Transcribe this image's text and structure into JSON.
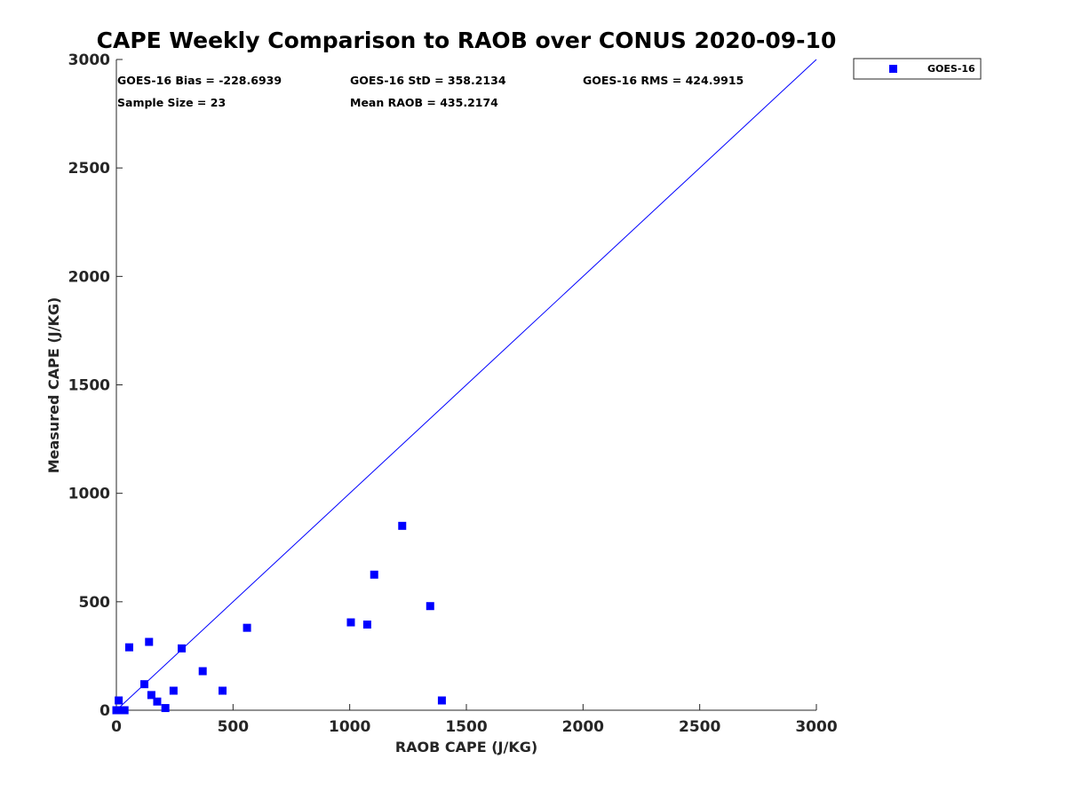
{
  "chart_data": {
    "type": "scatter",
    "title": "CAPE Weekly Comparison to RAOB over CONUS 2020-09-10",
    "xlabel": "RAOB CAPE (J/KG)",
    "ylabel": "Measured CAPE (J/KG)",
    "xlim": [
      0,
      3000
    ],
    "ylim": [
      0,
      3000
    ],
    "xticks": [
      "0",
      "500",
      "1000",
      "1500",
      "2000",
      "2500",
      "3000"
    ],
    "yticks": [
      "0",
      "500",
      "1000",
      "1500",
      "2000",
      "2500",
      "3000"
    ],
    "grid": false,
    "legend_position": "outside-top-right",
    "reference_line": {
      "name": "1:1 line",
      "x": [
        0,
        3000
      ],
      "y": [
        0,
        3000
      ],
      "color": "#0000ff"
    },
    "series": [
      {
        "name": "GOES-16",
        "marker": "square",
        "color": "#0000ff",
        "points": [
          [
            0,
            0
          ],
          [
            10,
            45
          ],
          [
            20,
            0
          ],
          [
            35,
            0
          ],
          [
            55,
            290
          ],
          [
            120,
            120
          ],
          [
            140,
            315
          ],
          [
            150,
            70
          ],
          [
            175,
            40
          ],
          [
            210,
            10
          ],
          [
            245,
            90
          ],
          [
            280,
            285
          ],
          [
            370,
            180
          ],
          [
            455,
            90
          ],
          [
            560,
            380
          ],
          [
            1005,
            405
          ],
          [
            1075,
            395
          ],
          [
            1105,
            625
          ],
          [
            1225,
            850
          ],
          [
            1345,
            480
          ],
          [
            1395,
            45
          ]
        ]
      }
    ],
    "annotations": [
      "GOES-16 Bias = -228.6939",
      "GOES-16 StD = 358.2134",
      "GOES-16 RMS = 424.9915",
      "Sample Size = 23",
      "Mean RAOB = 435.2174"
    ]
  }
}
